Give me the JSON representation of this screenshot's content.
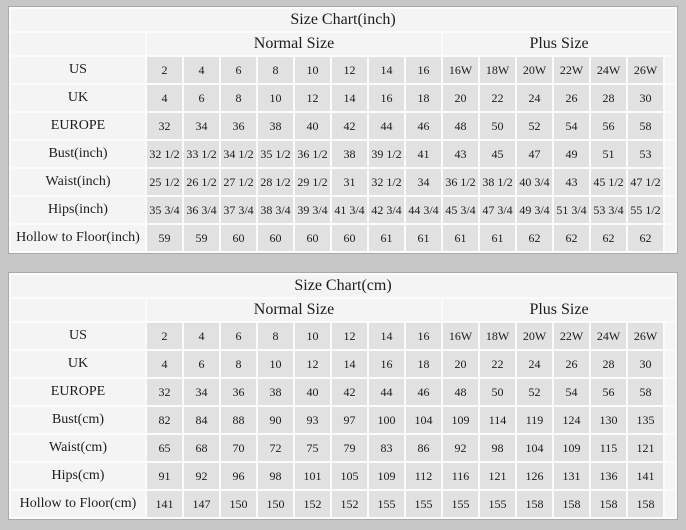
{
  "colors": {
    "page_bg": "#c7c7c7",
    "header_bg": "#f4f4f4",
    "cell_bg": "#e1e1e1",
    "grid_line": "#fbfbfb",
    "border": "#a9a9a9",
    "text": "#1c1c1c"
  },
  "chart_data": [
    {
      "type": "table",
      "title": "Size Chart(inch)",
      "column_groups": [
        {
          "label": "Normal Size",
          "span": 8
        },
        {
          "label": "Plus Size",
          "span": 6
        }
      ],
      "rows": [
        {
          "label": "US",
          "values": [
            "2",
            "4",
            "6",
            "8",
            "10",
            "12",
            "14",
            "16",
            "16W",
            "18W",
            "20W",
            "22W",
            "24W",
            "26W"
          ]
        },
        {
          "label": "UK",
          "values": [
            "4",
            "6",
            "8",
            "10",
            "12",
            "14",
            "16",
            "18",
            "20",
            "22",
            "24",
            "26",
            "28",
            "30"
          ]
        },
        {
          "label": "EUROPE",
          "values": [
            "32",
            "34",
            "36",
            "38",
            "40",
            "42",
            "44",
            "46",
            "48",
            "50",
            "52",
            "54",
            "56",
            "58"
          ]
        },
        {
          "label": "Bust(inch)",
          "values": [
            "32 1/2",
            "33 1/2",
            "34 1/2",
            "35 1/2",
            "36 1/2",
            "38",
            "39 1/2",
            "41",
            "43",
            "45",
            "47",
            "49",
            "51",
            "53"
          ]
        },
        {
          "label": "Waist(inch)",
          "values": [
            "25 1/2",
            "26 1/2",
            "27 1/2",
            "28 1/2",
            "29 1/2",
            "31",
            "32 1/2",
            "34",
            "36 1/2",
            "38 1/2",
            "40 3/4",
            "43",
            "45 1/2",
            "47 1/2"
          ]
        },
        {
          "label": "Hips(inch)",
          "values": [
            "35 3/4",
            "36 3/4",
            "37 3/4",
            "38 3/4",
            "39 3/4",
            "41 3/4",
            "42 3/4",
            "44 3/4",
            "45 3/4",
            "47 3/4",
            "49 3/4",
            "51 3/4",
            "53 3/4",
            "55 1/2"
          ]
        },
        {
          "label": "Hollow to Floor(inch)",
          "values": [
            "59",
            "59",
            "60",
            "60",
            "60",
            "60",
            "61",
            "61",
            "61",
            "61",
            "62",
            "62",
            "62",
            "62"
          ]
        }
      ]
    },
    {
      "type": "table",
      "title": "Size Chart(cm)",
      "column_groups": [
        {
          "label": "Normal Size",
          "span": 8
        },
        {
          "label": "Plus Size",
          "span": 6
        }
      ],
      "rows": [
        {
          "label": "US",
          "values": [
            "2",
            "4",
            "6",
            "8",
            "10",
            "12",
            "14",
            "16",
            "16W",
            "18W",
            "20W",
            "22W",
            "24W",
            "26W"
          ]
        },
        {
          "label": "UK",
          "values": [
            "4",
            "6",
            "8",
            "10",
            "12",
            "14",
            "16",
            "18",
            "20",
            "22",
            "24",
            "26",
            "28",
            "30"
          ]
        },
        {
          "label": "EUROPE",
          "values": [
            "32",
            "34",
            "36",
            "38",
            "40",
            "42",
            "44",
            "46",
            "48",
            "50",
            "52",
            "54",
            "56",
            "58"
          ]
        },
        {
          "label": "Bust(cm)",
          "values": [
            "82",
            "84",
            "88",
            "90",
            "93",
            "97",
            "100",
            "104",
            "109",
            "114",
            "119",
            "124",
            "130",
            "135"
          ]
        },
        {
          "label": "Waist(cm)",
          "values": [
            "65",
            "68",
            "70",
            "72",
            "75",
            "79",
            "83",
            "86",
            "92",
            "98",
            "104",
            "109",
            "115",
            "121"
          ]
        },
        {
          "label": "Hips(cm)",
          "values": [
            "91",
            "92",
            "96",
            "98",
            "101",
            "105",
            "109",
            "112",
            "116",
            "121",
            "126",
            "131",
            "136",
            "141"
          ]
        },
        {
          "label": "Hollow to Floor(cm)",
          "values": [
            "141",
            "147",
            "150",
            "150",
            "152",
            "152",
            "155",
            "155",
            "155",
            "155",
            "158",
            "158",
            "158",
            "158"
          ]
        }
      ]
    }
  ]
}
